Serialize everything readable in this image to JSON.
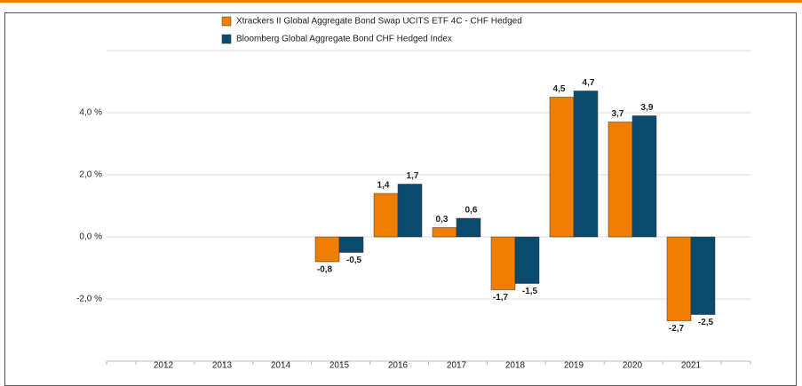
{
  "chart_data": {
    "type": "bar",
    "categories": [
      "2012",
      "2013",
      "2014",
      "2015",
      "2016",
      "2017",
      "2018",
      "2019",
      "2020",
      "2021"
    ],
    "series": [
      {
        "name": "Xtrackers II Global Aggregate Bond Swap UCITS ETF  4C - CHF Hedged",
        "color": "#ef7d00",
        "values": [
          null,
          null,
          null,
          -0.8,
          1.4,
          0.3,
          -1.7,
          4.5,
          3.7,
          -2.7
        ],
        "value_labels": [
          null,
          null,
          null,
          "-0,8",
          "1,4",
          "0,3",
          "-1,7",
          "4,5",
          "3,7",
          "-2,7"
        ]
      },
      {
        "name": "Bloomberg Global Aggregate Bond CHF Hedged Index",
        "color": "#0b4a6f",
        "values": [
          null,
          null,
          null,
          -0.5,
          1.7,
          0.6,
          -1.5,
          4.7,
          3.9,
          -2.5
        ],
        "value_labels": [
          null,
          null,
          null,
          "-0,5",
          "1,7",
          "0,6",
          "-1,5",
          "4,7",
          "3,9",
          "-2,5"
        ]
      }
    ],
    "ylim": [
      -4,
      6
    ],
    "yticks": [
      {
        "value": -2,
        "label": "-2,0 %"
      },
      {
        "value": 0,
        "label": "0,0 %"
      },
      {
        "value": 2,
        "label": "2,0 %"
      },
      {
        "value": 4,
        "label": "4,0 %"
      }
    ],
    "grid": true
  }
}
